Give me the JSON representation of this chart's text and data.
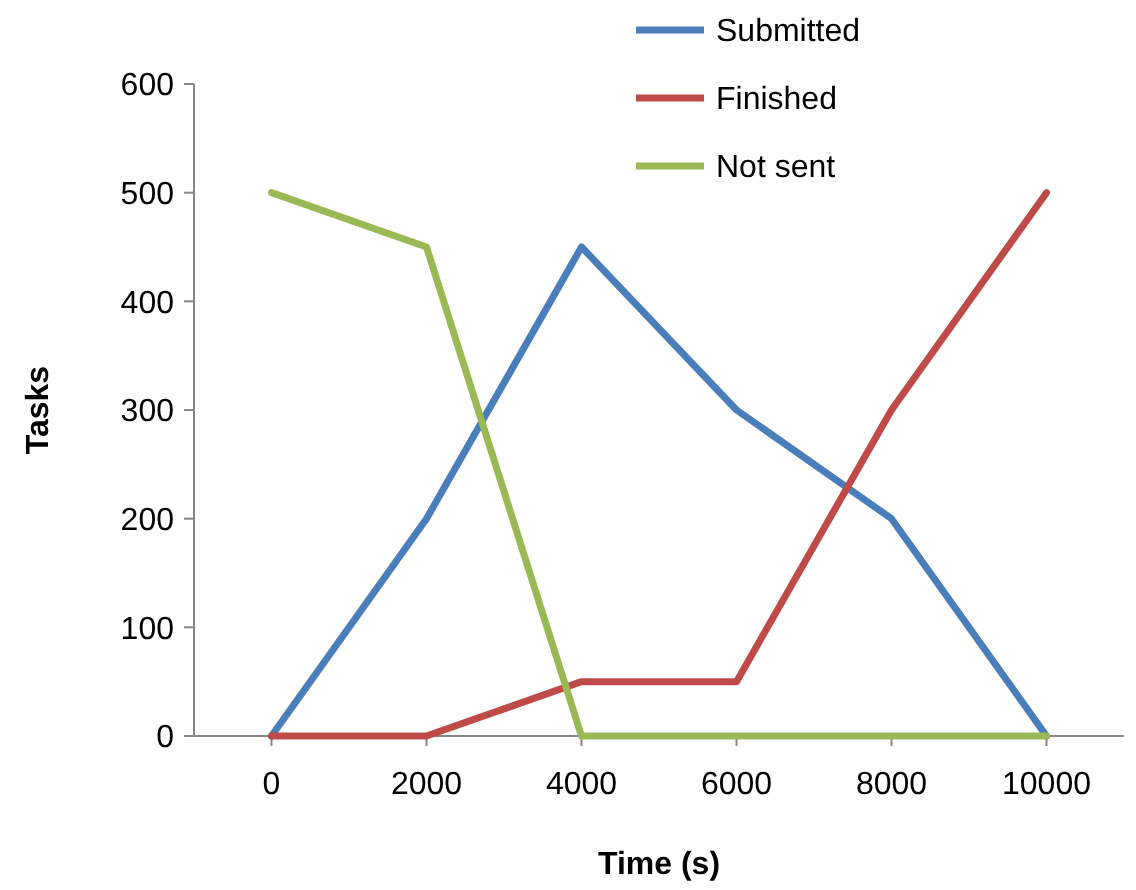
{
  "chart_data": {
    "type": "line",
    "xlabel": "Time (s)",
    "ylabel": "Tasks",
    "x": [
      0,
      2000,
      4000,
      6000,
      8000,
      10000
    ],
    "series": [
      {
        "name": "Submitted",
        "color": "#4a7ebb",
        "values": [
          0,
          200,
          450,
          300,
          200,
          0
        ]
      },
      {
        "name": "Finished",
        "color": "#be4b48",
        "values": [
          0,
          0,
          50,
          50,
          300,
          500
        ]
      },
      {
        "name": "Not sent",
        "color": "#98b954",
        "values": [
          500,
          450,
          0,
          0,
          0,
          0
        ]
      }
    ],
    "xlim": [
      -1000,
      11000
    ],
    "xticks": [
      0,
      2000,
      4000,
      6000,
      8000,
      10000
    ],
    "ylim": [
      0,
      600
    ],
    "yticks": [
      0,
      100,
      200,
      300,
      400,
      500,
      600
    ],
    "grid": false,
    "legend": "top",
    "marker": "none",
    "line_style": "solid"
  }
}
